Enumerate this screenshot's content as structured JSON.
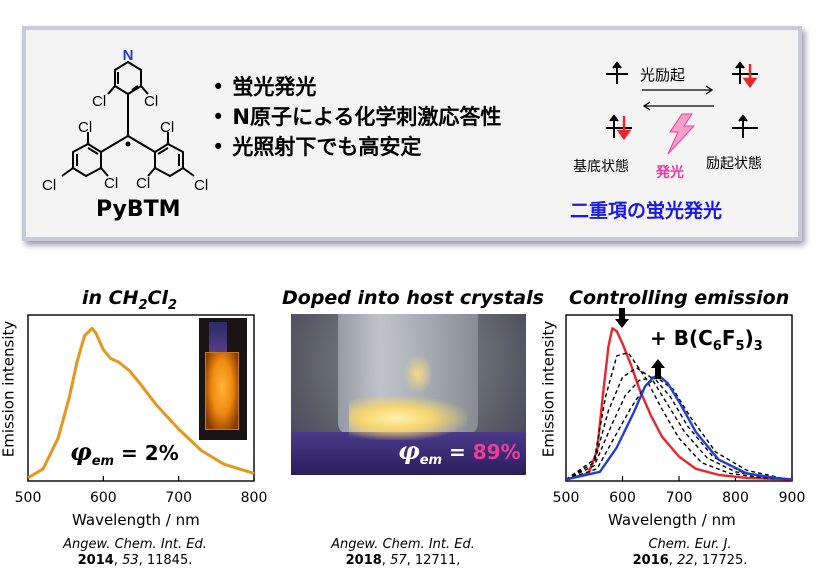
{
  "top": {
    "compound_name": "PyBTM",
    "bullets": [
      "蛍光発光",
      "N原子による化学刺激応答性",
      "光照射下でも高安定"
    ],
    "bullet_mark": "•",
    "scheme": {
      "excite_label": "光励起",
      "ground_label": "基底状態",
      "excited_label": "励起状態",
      "emission_label": "発光",
      "doublet_title": "二重項の蛍光発光"
    },
    "atom_labels": {
      "n": "N",
      "cl": "Cl"
    }
  },
  "panels": {
    "left": {
      "title": "in CH",
      "title_sub": "2",
      "title_tail": "Cl",
      "title_sub2": "2",
      "phi_symbol": "φ",
      "phi_sub": "em",
      "phi_text": " = 2%",
      "ref_journal": "Angew. Chem. Int. Ed.",
      "ref_year": "2014",
      "ref_vol": "53",
      "ref_pages": ", 11845."
    },
    "middle": {
      "title": "Doped into host crystals",
      "phi_symbol": "φ",
      "phi_sub": "em",
      "phi_eq": " = ",
      "phi_value": "89%",
      "ref_journal": "Angew. Chem. Int. Ed.",
      "ref_year": "2018",
      "ref_vol": "57",
      "ref_pages": ", 12711,"
    },
    "right": {
      "title": "Controlling emission",
      "reagent_a": "+ B(C",
      "reagent_sub1": "6",
      "reagent_b": "F",
      "reagent_sub2": "5",
      "reagent_c": ")",
      "reagent_sub3": "3",
      "ref_journal": "Chem. Eur. J.",
      "ref_year": "2016",
      "ref_vol": "22",
      "ref_pages": ", 17725."
    }
  },
  "colors": {
    "orange": "#e8951b",
    "red": "#e8262b",
    "blue": "#1f3fd6",
    "pink": "#f03c9a",
    "scheme_blue": "#1a1ae6"
  },
  "chart_data": [
    {
      "type": "line",
      "xlabel": "Wavelength / nm",
      "ylabel": "Emission intensity",
      "xlim": [
        500,
        800
      ],
      "xticks": [
        "500",
        "600",
        "700",
        "800"
      ],
      "series": [
        {
          "color": "#e8951b",
          "x": [
            500,
            520,
            540,
            555,
            565,
            575,
            585,
            590,
            600,
            610,
            620,
            635,
            650,
            670,
            700,
            730,
            760,
            800
          ],
          "y": [
            0.02,
            0.08,
            0.28,
            0.55,
            0.78,
            0.95,
            1.0,
            0.97,
            0.86,
            0.8,
            0.78,
            0.72,
            0.63,
            0.5,
            0.34,
            0.2,
            0.11,
            0.05
          ]
        }
      ]
    },
    {
      "type": "line",
      "xlabel": "Wavelength / nm",
      "ylabel": "Emission intensity",
      "xlim": [
        500,
        900
      ],
      "xticks": [
        "500",
        "600",
        "700",
        "800",
        "900"
      ],
      "series": [
        {
          "color": "#e8262b",
          "x": [
            500,
            540,
            555,
            565,
            575,
            582,
            590,
            600,
            615,
            630,
            650,
            670,
            700,
            730,
            770,
            820,
            900
          ],
          "y": [
            0.01,
            0.05,
            0.2,
            0.55,
            0.88,
            1.0,
            0.98,
            0.9,
            0.76,
            0.6,
            0.43,
            0.29,
            0.16,
            0.08,
            0.04,
            0.02,
            0.01
          ]
        },
        {
          "color": "#000000",
          "dashed": true,
          "x": [
            500,
            550,
            570,
            590,
            610,
            640,
            670,
            700,
            740,
            790,
            850,
            900
          ],
          "y": [
            0.01,
            0.14,
            0.55,
            0.82,
            0.84,
            0.68,
            0.47,
            0.28,
            0.12,
            0.05,
            0.02,
            0.01
          ]
        },
        {
          "color": "#000000",
          "dashed": true,
          "x": [
            500,
            550,
            575,
            600,
            625,
            650,
            680,
            710,
            750,
            800,
            860,
            900
          ],
          "y": [
            0.01,
            0.12,
            0.46,
            0.68,
            0.74,
            0.68,
            0.5,
            0.32,
            0.15,
            0.06,
            0.02,
            0.01
          ]
        },
        {
          "color": "#000000",
          "dashed": true,
          "x": [
            500,
            550,
            580,
            605,
            630,
            655,
            685,
            715,
            760,
            810,
            870,
            900
          ],
          "y": [
            0.01,
            0.1,
            0.36,
            0.56,
            0.66,
            0.68,
            0.55,
            0.36,
            0.16,
            0.06,
            0.02,
            0.01
          ]
        },
        {
          "color": "#000000",
          "dashed": true,
          "x": [
            500,
            555,
            585,
            615,
            640,
            660,
            690,
            720,
            765,
            820,
            880,
            900
          ],
          "y": [
            0.01,
            0.08,
            0.28,
            0.48,
            0.62,
            0.68,
            0.6,
            0.42,
            0.19,
            0.07,
            0.02,
            0.01
          ]
        },
        {
          "color": "#1f3fd6",
          "x": [
            500,
            560,
            590,
            620,
            640,
            655,
            665,
            680,
            700,
            730,
            770,
            820,
            870,
            900
          ],
          "y": [
            0.01,
            0.06,
            0.22,
            0.45,
            0.62,
            0.68,
            0.69,
            0.64,
            0.52,
            0.32,
            0.14,
            0.05,
            0.02,
            0.01
          ]
        }
      ]
    }
  ]
}
